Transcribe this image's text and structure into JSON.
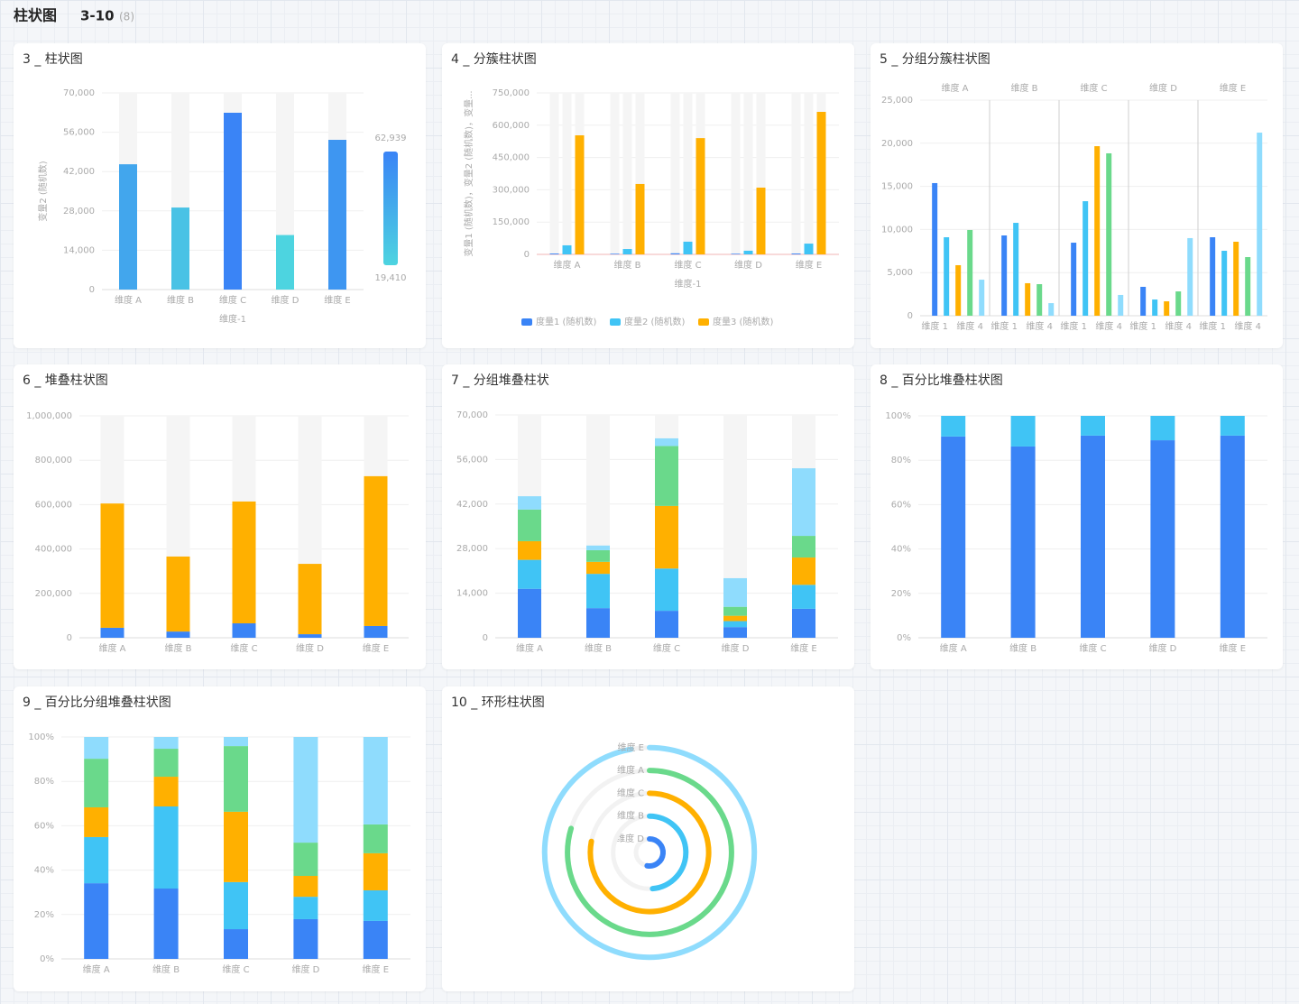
{
  "header": {
    "title": "柱状图",
    "range": "3-10",
    "count": "(8)"
  },
  "chart_data": [
    {
      "type": "bar",
      "title": "3 _ 柱状图",
      "categories": [
        "维度 A",
        "维度 B",
        "维度 C",
        "维度 D",
        "维度 E"
      ],
      "values": [
        44600,
        29200,
        62939,
        19410,
        53300
      ],
      "ylim": [
        0,
        70000
      ],
      "yticks": [
        0,
        {
          "value": 14000,
          "label": "14,000"
        },
        {
          "value": 28000,
          "label": "28,000"
        },
        {
          "value": 42000,
          "label": "42,000"
        },
        {
          "value": 56000,
          "label": "56,000"
        },
        {
          "value": 70000,
          "label": "70,000"
        }
      ],
      "y_label": "变量2 (随机数)",
      "x_label": "维度-1",
      "grid": true,
      "visual_map": {
        "max": {
          "value": 62939,
          "label": "62,939"
        },
        "min": {
          "value": 19410,
          "label": "19,410"
        },
        "colors": [
          "#4dd4e0",
          "#3a84f6"
        ]
      }
    },
    {
      "type": "clustered-bar",
      "title": "4 _ 分簇柱状图",
      "categories": [
        "维度 A",
        "维度 B",
        "维度 C",
        "维度 D",
        "维度 E"
      ],
      "series": [
        {
          "name": "度量1 (随机数)",
          "color": "#3a84f6",
          "values": [
            4000,
            3000,
            5000,
            3000,
            4000
          ]
        },
        {
          "name": "度量2 (随机数)",
          "color": "#40c4f5",
          "values": [
            42000,
            25000,
            59000,
            17000,
            50000
          ]
        },
        {
          "name": "度量3 (随机数)",
          "color": "#ffb000",
          "values": [
            553000,
            327000,
            540000,
            310000,
            662000
          ]
        }
      ],
      "ylim": [
        0,
        750000
      ],
      "yticks": [
        0,
        {
          "value": 150000,
          "label": "150,000"
        },
        {
          "value": 300000,
          "label": "300,000"
        },
        {
          "value": 450000,
          "label": "450,000"
        },
        {
          "value": 600000,
          "label": "600,000"
        },
        {
          "value": 750000,
          "label": "750,000"
        }
      ],
      "y_label": "变量1 (随机数)，变量2 (随机数)，变量...",
      "x_label": "维度-1",
      "grid": true
    },
    {
      "type": "faceted-bar",
      "title": "5 _ 分组分簇柱状图",
      "categories": [
        "维度 1",
        null,
        null,
        "维度 4",
        null
      ],
      "colors": [
        "#3a84f6",
        "#40c4f5",
        "#ffb000",
        "#6ad98b",
        "#8fdcfd"
      ],
      "facets": [
        {
          "name": "维度 A",
          "values": [
            15380,
            9100,
            5860,
            9940,
            4180
          ]
        },
        {
          "name": "维度 B",
          "values": [
            9310,
            10770,
            3770,
            3660,
            1460
          ]
        },
        {
          "name": "维度 C",
          "values": [
            8470,
            13280,
            19660,
            18830,
            2410
          ]
        },
        {
          "name": "维度 D",
          "values": [
            3350,
            1880,
            1670,
            2820,
            9000
          ]
        },
        {
          "name": "维度 E",
          "values": [
            9100,
            7530,
            8580,
            6800,
            21230
          ]
        }
      ],
      "ylim": [
        0,
        25000
      ],
      "yticks": [
        0,
        {
          "value": 5000,
          "label": "5,000"
        },
        {
          "value": 10000,
          "label": "10,000"
        },
        {
          "value": 15000,
          "label": "15,000"
        },
        {
          "value": 20000,
          "label": "20,000"
        },
        {
          "value": 25000,
          "label": "25,000"
        }
      ],
      "grid": true
    },
    {
      "type": "stacked-bar",
      "title": "6 _ 堆叠柱状图",
      "categories": [
        "维度 A",
        "维度 B",
        "维度 C",
        "维度 D",
        "维度 E"
      ],
      "series": [
        {
          "color": "#3a84f6",
          "values": [
            45000,
            28000,
            65000,
            16000,
            53000
          ]
        },
        {
          "color": "#ffb000",
          "values": [
            560000,
            338000,
            549000,
            317000,
            675000
          ]
        }
      ],
      "ylim": [
        0,
        1000000
      ],
      "yticks": [
        0,
        {
          "value": 200000,
          "label": "200,000"
        },
        {
          "value": 400000,
          "label": "400,000"
        },
        {
          "value": 600000,
          "label": "600,000"
        },
        {
          "value": 800000,
          "label": "800,000"
        },
        {
          "value": 1000000,
          "label": "1,000,000"
        }
      ],
      "grid": true
    },
    {
      "type": "stacked-bar",
      "title": "7 _ 分组堆叠柱状",
      "categories": [
        "维度 A",
        "维度 B",
        "维度 C",
        "维度 D",
        "维度 E"
      ],
      "series": [
        {
          "color": "#3a84f6",
          "values": [
            15380,
            9310,
            8470,
            3350,
            9100
          ]
        },
        {
          "color": "#40c4f5",
          "values": [
            9100,
            10770,
            13280,
            1880,
            7530
          ]
        },
        {
          "color": "#ffb000",
          "values": [
            5860,
            3770,
            19660,
            1670,
            8580
          ]
        },
        {
          "color": "#6ad98b",
          "values": [
            9940,
            3660,
            18830,
            2820,
            6800
          ]
        },
        {
          "color": "#8fdcfd",
          "values": [
            4180,
            1460,
            2410,
            9000,
            21230
          ]
        }
      ],
      "ylim": [
        0,
        70000
      ],
      "yticks": [
        0,
        {
          "value": 14000,
          "label": "14,000"
        },
        {
          "value": 28000,
          "label": "28,000"
        },
        {
          "value": 42000,
          "label": "42,000"
        },
        {
          "value": 56000,
          "label": "56,000"
        },
        {
          "value": 70000,
          "label": "70,000"
        }
      ],
      "grid": true
    },
    {
      "type": "percent-stacked-bar",
      "title": "8 _ 百分比堆叠柱状图",
      "categories": [
        "维度 A",
        "维度 B",
        "维度 C",
        "维度 D",
        "维度 E"
      ],
      "series": [
        {
          "color": "#3a84f6",
          "values": [
            90.7,
            86.2,
            91.1,
            89.0,
            91.1
          ]
        },
        {
          "color": "#40c4f5",
          "values": [
            9.3,
            13.8,
            8.9,
            11.0,
            8.9
          ]
        }
      ],
      "ylim": [
        0,
        100
      ],
      "yticks": [
        {
          "value": 0,
          "label": "0%"
        },
        {
          "value": 20,
          "label": "20%"
        },
        {
          "value": 40,
          "label": "40%"
        },
        {
          "value": 60,
          "label": "60%"
        },
        {
          "value": 80,
          "label": "80%"
        },
        {
          "value": 100,
          "label": "100%"
        }
      ],
      "grid": true
    },
    {
      "type": "percent-stacked-bar",
      "title": "9 _ 百分比分组堆叠柱状图",
      "categories": [
        "维度 A",
        "维度 B",
        "维度 C",
        "维度 D",
        "维度 E"
      ],
      "series": [
        {
          "color": "#3a84f6",
          "values": [
            34.1,
            31.7,
            13.4,
            17.9,
            17.1
          ]
        },
        {
          "color": "#40c4f5",
          "values": [
            20.8,
            37.0,
            21.2,
            10.1,
            13.8
          ]
        },
        {
          "color": "#ffb000",
          "values": [
            13.4,
            13.4,
            31.7,
            9.4,
            16.7
          ]
        },
        {
          "color": "#6ad98b",
          "values": [
            21.9,
            12.6,
            29.6,
            15.0,
            13.0
          ]
        },
        {
          "color": "#8fdcfd",
          "values": [
            9.8,
            5.3,
            4.1,
            47.6,
            39.4
          ]
        }
      ],
      "ylim": [
        0,
        100
      ],
      "yticks": [
        {
          "value": 0,
          "label": "0%"
        },
        {
          "value": 20,
          "label": "20%"
        },
        {
          "value": 40,
          "label": "40%"
        },
        {
          "value": 60,
          "label": "60%"
        },
        {
          "value": 80,
          "label": "80%"
        },
        {
          "value": 100,
          "label": "100%"
        }
      ],
      "grid": true
    },
    {
      "type": "radial-bar",
      "title": "10 _ 环形柱状图",
      "categories": [
        "维度 D",
        "维度 B",
        "维度 C",
        "维度 A",
        "维度 E"
      ],
      "values": [
        396000,
        365000,
        585000,
        598000,
        729000
      ],
      "colors": [
        "#3a84f6",
        "#40c4f5",
        "#ffb000",
        "#6ad98b",
        "#8fdcfd"
      ],
      "anglelim": [
        0,
        750000
      ]
    }
  ]
}
